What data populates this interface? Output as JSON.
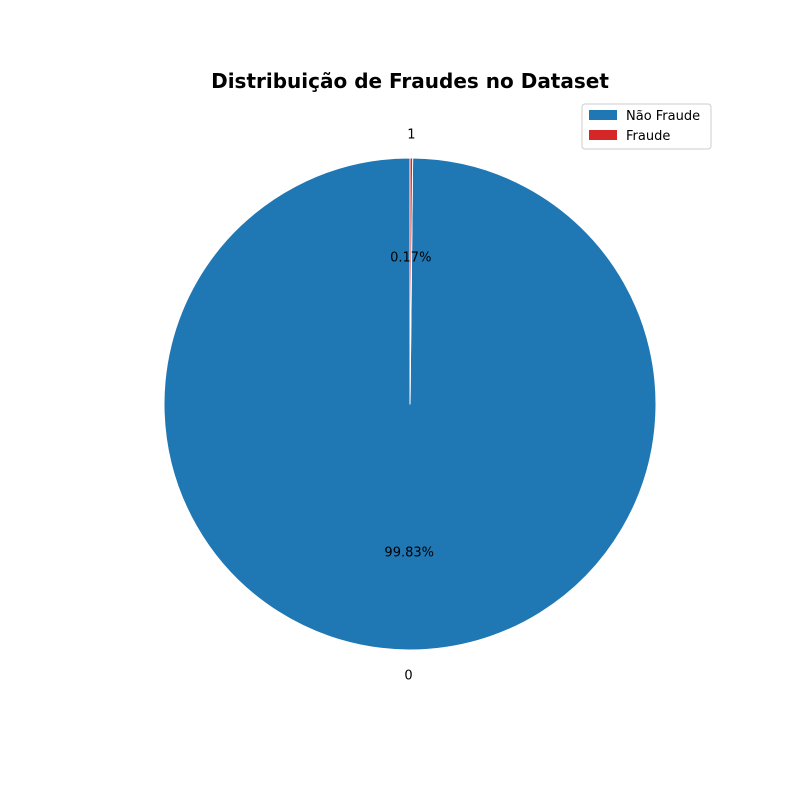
{
  "chart_data": {
    "type": "pie",
    "title": "Distribuição de Fraudes no Dataset",
    "slices": [
      {
        "label": "0",
        "legend": "Não Fraude",
        "value": 99.83,
        "pct_label": "99.83%",
        "color": "#1f77b4"
      },
      {
        "label": "1",
        "legend": "Fraude",
        "value": 0.17,
        "pct_label": "0.17%",
        "color": "#d62728"
      }
    ],
    "start_angle_deg": 90,
    "direction": "counterclockwise",
    "legend_placement": "top-right",
    "slice_edge_color": "#ffffff"
  }
}
